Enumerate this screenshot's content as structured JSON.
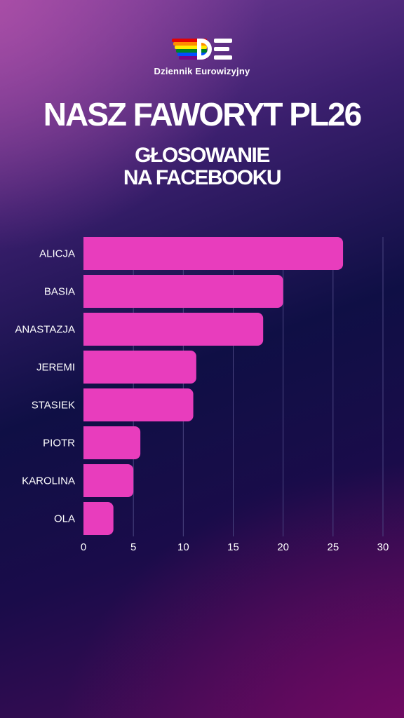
{
  "brand": {
    "name": "Dziennik Eurowizyjny"
  },
  "header": {
    "title": "NASZ FAWORYT PL26",
    "subtitle_line1": "GŁOSOWANIE",
    "subtitle_line2": "NA FACEBOOKU"
  },
  "colors": {
    "bar": "#e83dbd",
    "text": "#ffffff",
    "grid": "#4a4580",
    "logo_rainbow": [
      "#e40303",
      "#ff8c00",
      "#ffed00",
      "#008026",
      "#004dff",
      "#750787"
    ]
  },
  "chart_data": {
    "type": "bar",
    "orientation": "horizontal",
    "categories": [
      "ALICJA",
      "BASIA",
      "ANASTAZJA",
      "JEREMI",
      "STASIEK",
      "PIOTR",
      "KAROLINA",
      "OLA"
    ],
    "values": [
      26,
      20,
      18,
      11.3,
      11,
      5.7,
      5,
      3
    ],
    "xlim": [
      0,
      30
    ],
    "xticks": [
      0,
      5,
      10,
      15,
      20,
      25,
      30
    ],
    "grid": true,
    "title": "",
    "xlabel": "",
    "ylabel": ""
  }
}
